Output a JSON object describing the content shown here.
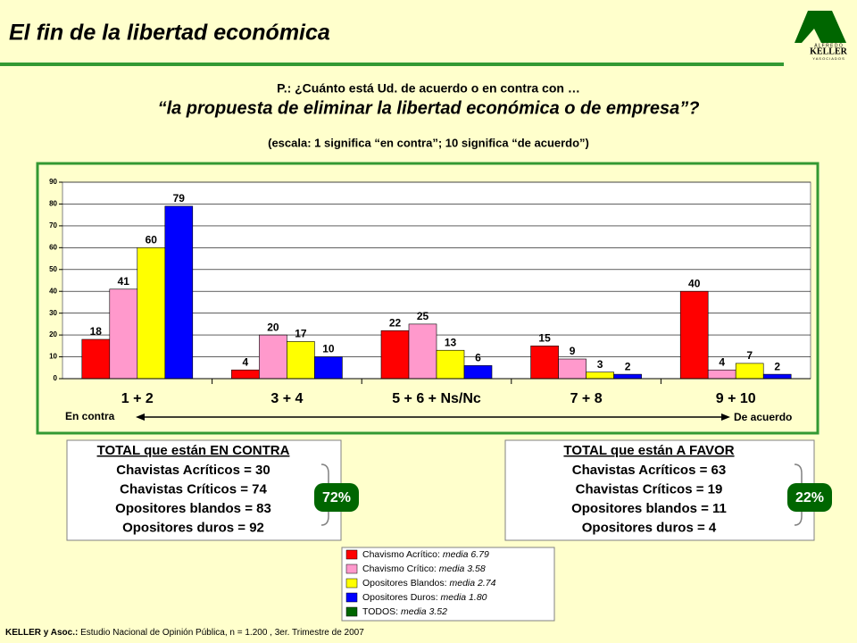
{
  "header": {
    "title": "El fin de la libertad económica",
    "logo_top": "A L F R E D O",
    "logo_name": "KELLER",
    "logo_bottom": "Y  A S O C I A D O S"
  },
  "question": {
    "line1": "P.: ¿Cuánto está Ud. de acuerdo o en contra con …",
    "line2": "“la propuesta de eliminar la libertad económica o de empresa”?",
    "line3": "(escala: 1 significa  “en contra”; 10 significa  “de acuerdo”)"
  },
  "chart_data": {
    "type": "bar",
    "categories": [
      "1 + 2",
      "3 + 4",
      "5 + 6 + Ns/Nc",
      "7 + 8",
      "9 + 10"
    ],
    "series": [
      {
        "name": "Chavismo Acrítico:",
        "note": "media 6.79",
        "color": "#ff0000",
        "values": [
          18,
          4,
          22,
          15,
          40
        ]
      },
      {
        "name": "Chavismo Crítico:",
        "note": "media 3.58",
        "color": "#ff99cc",
        "values": [
          41,
          20,
          25,
          9,
          4
        ]
      },
      {
        "name": "Opositores Blandos:",
        "note": "media 2.74",
        "color": "#ffff00",
        "values": [
          60,
          17,
          13,
          3,
          7
        ]
      },
      {
        "name": "Opositores Duros:",
        "note": "media 1.80",
        "color": "#0000ff",
        "values": [
          79,
          10,
          6,
          2,
          2
        ]
      }
    ],
    "ylim": [
      0,
      90
    ],
    "yticks": [
      0,
      10,
      20,
      30,
      40,
      50,
      60,
      70,
      80,
      90
    ],
    "grid": true,
    "left_label": "En contra",
    "right_label": "De acuerdo"
  },
  "legend_extra": {
    "name": "TODOS:",
    "note": "media 3.52",
    "color": "#006600"
  },
  "summary_left": {
    "title": "TOTAL que están EN CONTRA",
    "lines": [
      "Chavistas Acríticos = 30",
      "Chavistas Críticos = 74",
      "Opositores blandos = 83",
      "Opositores duros = 92"
    ],
    "badge": "72%"
  },
  "summary_right": {
    "title": "TOTAL que están A FAVOR",
    "lines": [
      "Chavistas Acríticos = 63",
      "Chavistas Críticos = 19",
      "Opositores blandos = 11",
      "Opositores duros =  4"
    ],
    "badge": "22%"
  },
  "footer": {
    "source_label": "KELLER y Asoc.:",
    "source": " Estudio Nacional de Opinión Pública, n = 1.200 , 3er. Trimestre de 2007"
  }
}
